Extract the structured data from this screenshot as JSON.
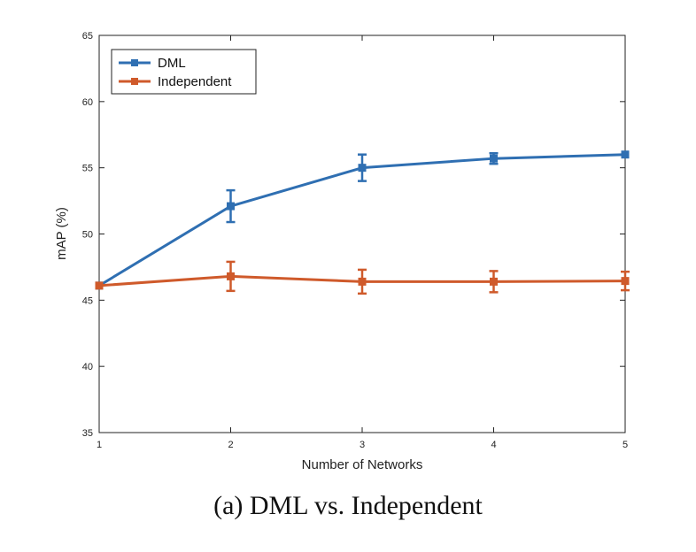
{
  "chart_data": {
    "type": "line",
    "title": "",
    "xlabel": "Number of Networks",
    "ylabel": "mAP (%)",
    "xlim": [
      1,
      5
    ],
    "ylim": [
      35,
      65
    ],
    "x_ticks": [
      1,
      2,
      3,
      4,
      5
    ],
    "y_ticks": [
      35,
      40,
      45,
      50,
      55,
      60,
      65
    ],
    "grid": false,
    "legend_position": "top-left",
    "series": [
      {
        "name": "DML",
        "color": "#2f6fb2",
        "x": [
          1,
          2,
          3,
          4,
          5
        ],
        "values": [
          46.1,
          52.1,
          55.0,
          55.7,
          56.0
        ],
        "error": [
          0,
          1.2,
          1.0,
          0.4,
          0
        ]
      },
      {
        "name": "Independent",
        "color": "#cf5a2b",
        "x": [
          1,
          2,
          3,
          4,
          5
        ],
        "values": [
          46.1,
          46.8,
          46.4,
          46.4,
          46.45
        ],
        "error": [
          0,
          1.1,
          0.9,
          0.8,
          0.7
        ]
      }
    ]
  },
  "caption": "(a) DML vs.  Independent"
}
